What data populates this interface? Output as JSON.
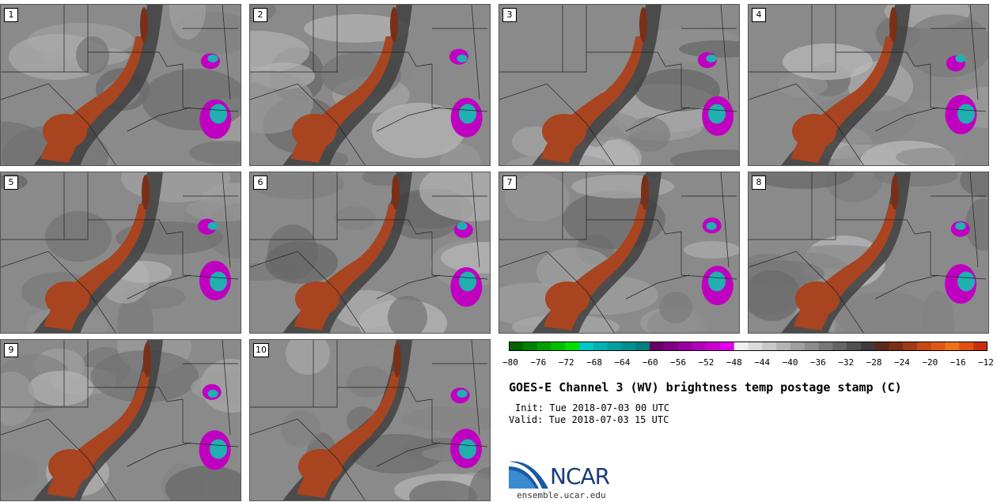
{
  "panels": [
    {
      "label": "1"
    },
    {
      "label": "2"
    },
    {
      "label": "3"
    },
    {
      "label": "4"
    },
    {
      "label": "5"
    },
    {
      "label": "6"
    },
    {
      "label": "7"
    },
    {
      "label": "8"
    },
    {
      "label": "9"
    },
    {
      "label": "10"
    }
  ],
  "colorbar": {
    "colors": [
      "#006400",
      "#008000",
      "#00a000",
      "#00c000",
      "#00e000",
      "#00c8c8",
      "#00b4b4",
      "#00a0a0",
      "#009090",
      "#008080",
      "#660066",
      "#800080",
      "#9900a0",
      "#b000b8",
      "#c800d0",
      "#e000e8",
      "#f0f0f0",
      "#dcdcdc",
      "#c8c8c8",
      "#b4b4b4",
      "#a0a0a0",
      "#8c8c8c",
      "#787878",
      "#646464",
      "#505050",
      "#3c3c3c",
      "#5a2a1a",
      "#7a3018",
      "#a03a18",
      "#c84818",
      "#e05818",
      "#f07018",
      "#e05010",
      "#c83010"
    ],
    "ticks": [
      "-80",
      "-76",
      "-72",
      "-68",
      "-64",
      "-60",
      "-56",
      "-52",
      "-48",
      "-44",
      "-40",
      "-36",
      "-32",
      "-28",
      "-24",
      "-20",
      "-16",
      "-12"
    ]
  },
  "title": "GOES-E Channel 3 (WV) brightness temp postage stamp (C)",
  "init": "Init: Tue 2018-07-03 00 UTC",
  "valid": "Valid: Tue 2018-07-03 15 UTC",
  "logo": {
    "text": "NCAR",
    "site": "ensemble.ucar.edu",
    "color": "#1a3a7a"
  },
  "colors": {
    "warm": "#a84420",
    "warmDark": "#7a3018",
    "dark": "#404040",
    "convection_purple": "#c000c0",
    "convection_cyan": "#20b0b0"
  }
}
